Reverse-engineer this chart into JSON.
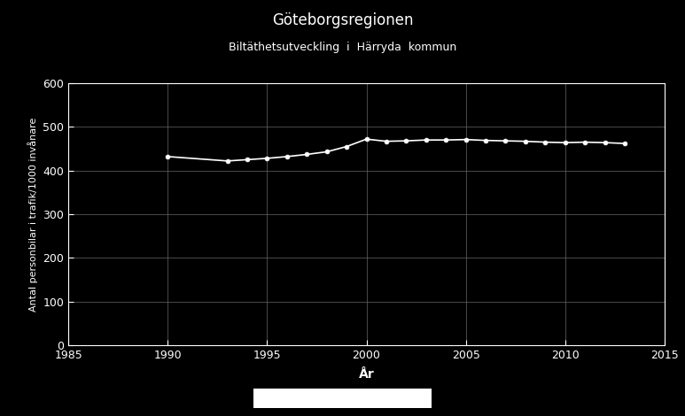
{
  "title": "Göteborgsregionen",
  "subtitle": "Biltäthetsutveckling  i  Härryda  kommun",
  "xlabel": "År",
  "ylabel": "Antal personbilar i trafik/1000 invånare",
  "background_color": "#000000",
  "text_color": "#ffffff",
  "line_color": "#ffffff",
  "marker_color": "#ffffff",
  "grid_color": "#666666",
  "xlim": [
    1985,
    2015
  ],
  "ylim": [
    0,
    600
  ],
  "xticks": [
    1985,
    1990,
    1995,
    2000,
    2005,
    2010,
    2015
  ],
  "yticks": [
    0,
    100,
    200,
    300,
    400,
    500,
    600
  ],
  "years": [
    1990,
    1993,
    1994,
    1995,
    1996,
    1997,
    1998,
    1999,
    2000,
    2001,
    2002,
    2003,
    2004,
    2005,
    2006,
    2007,
    2008,
    2009,
    2010,
    2011,
    2012,
    2013
  ],
  "values": [
    432,
    422,
    425,
    428,
    432,
    437,
    443,
    455,
    472,
    467,
    468,
    470,
    470,
    471,
    469,
    468,
    467,
    465,
    464,
    465,
    464,
    462
  ],
  "title_fontsize": 12,
  "subtitle_fontsize": 9,
  "xlabel_fontsize": 10,
  "ylabel_fontsize": 8,
  "tick_labelsize": 9
}
